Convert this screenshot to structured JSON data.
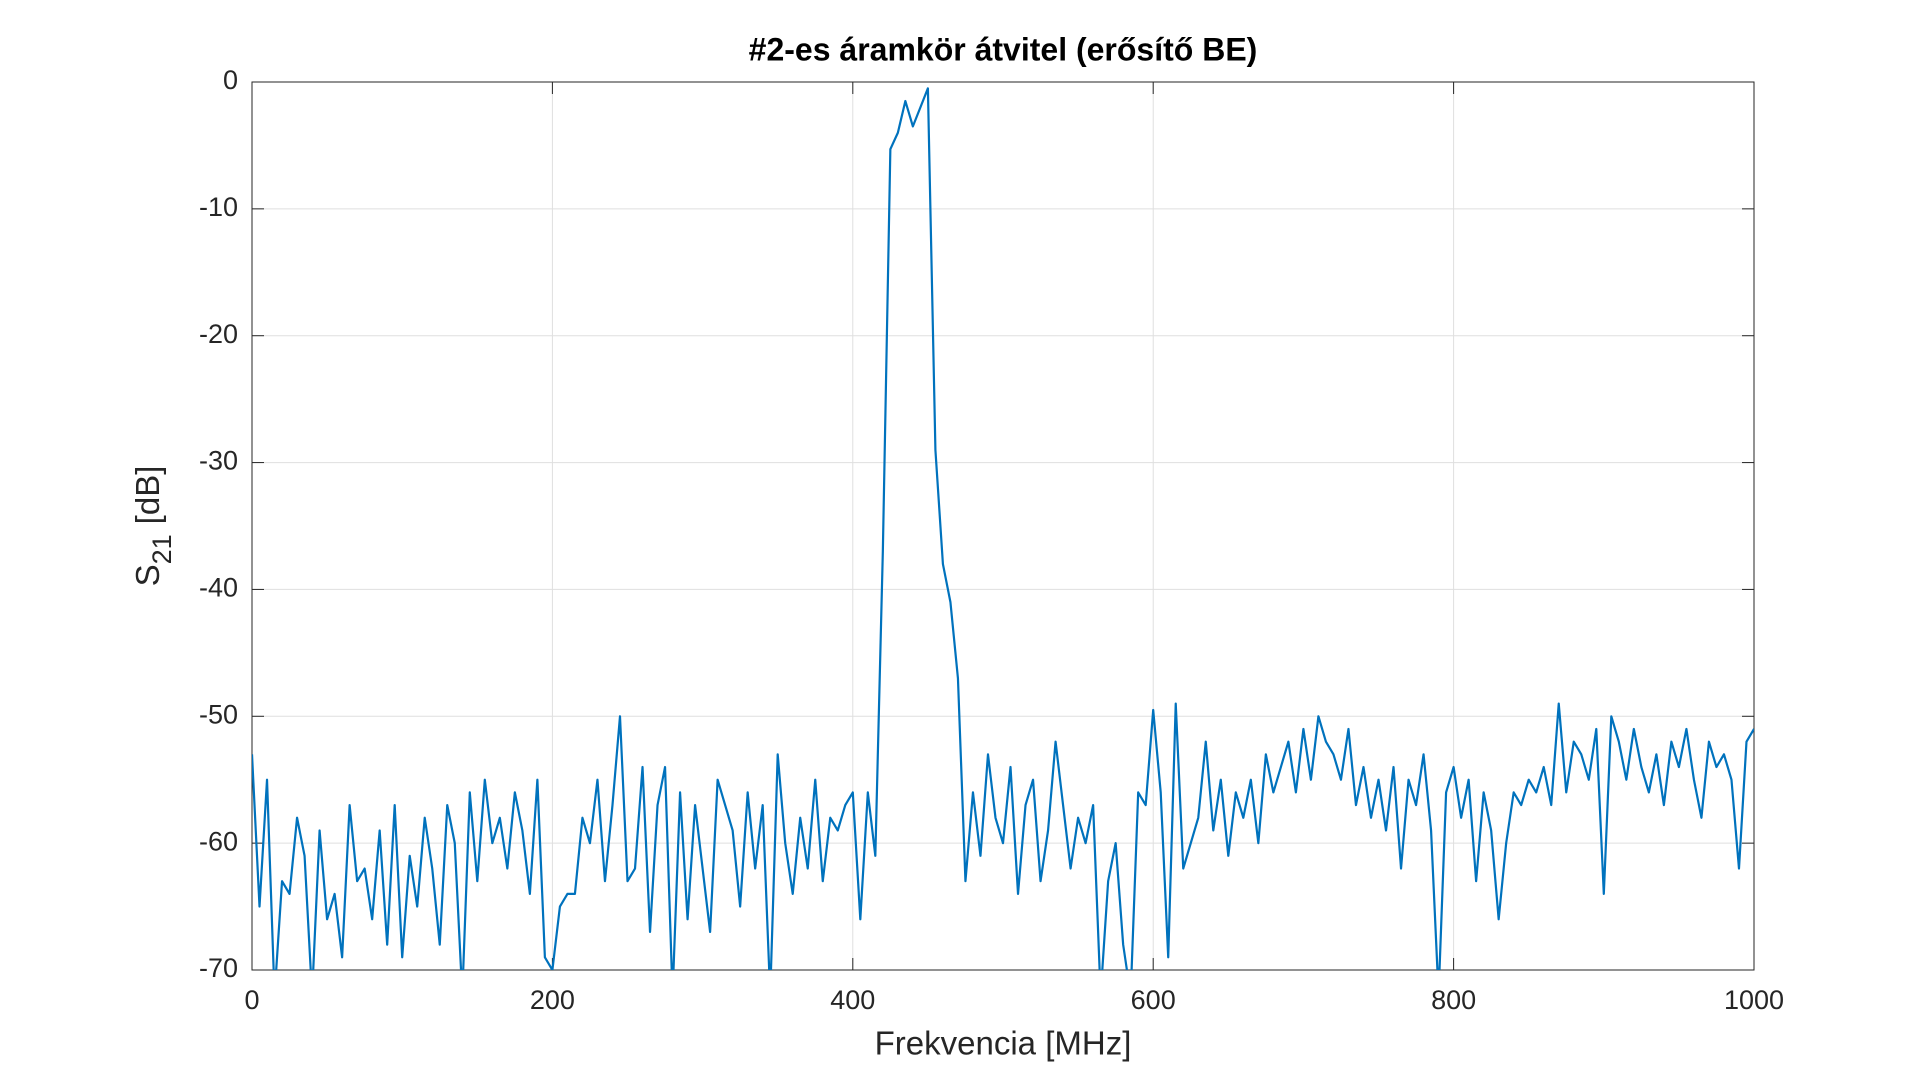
{
  "chart_data": {
    "type": "line",
    "title": "#2-es áramkör átvitel (erősítő BE)",
    "xlabel": "Frekvencia [MHz]",
    "ylabel": {
      "main": "S",
      "sub": "21",
      "unit": "[dB]"
    },
    "xlim": [
      0,
      1000
    ],
    "xticks": [
      0,
      200,
      400,
      600,
      800,
      1000
    ],
    "ylim": [
      -70,
      0
    ],
    "yticks": [
      -70,
      -60,
      -50,
      -40,
      -30,
      -20,
      -10,
      0
    ],
    "grid": true,
    "x": [
      0,
      5,
      10,
      15,
      20,
      25,
      30,
      35,
      40,
      45,
      50,
      55,
      60,
      65,
      70,
      75,
      80,
      85,
      90,
      95,
      100,
      105,
      110,
      115,
      120,
      125,
      130,
      135,
      140,
      145,
      150,
      155,
      160,
      165,
      170,
      175,
      180,
      185,
      190,
      195,
      200,
      205,
      210,
      215,
      220,
      225,
      230,
      235,
      240,
      245,
      250,
      255,
      260,
      265,
      270,
      275,
      280,
      285,
      290,
      295,
      300,
      305,
      310,
      315,
      320,
      325,
      330,
      335,
      340,
      345,
      350,
      355,
      360,
      365,
      370,
      375,
      380,
      385,
      390,
      395,
      400,
      405,
      410,
      415,
      420,
      425,
      430,
      435,
      440,
      445,
      450,
      455,
      460,
      465,
      470,
      475,
      480,
      485,
      490,
      495,
      500,
      505,
      510,
      515,
      520,
      525,
      530,
      535,
      540,
      545,
      550,
      555,
      560,
      565,
      570,
      575,
      580,
      585,
      590,
      595,
      600,
      605,
      610,
      615,
      620,
      625,
      630,
      635,
      640,
      645,
      650,
      655,
      660,
      665,
      670,
      675,
      680,
      685,
      690,
      695,
      700,
      705,
      710,
      715,
      720,
      725,
      730,
      735,
      740,
      745,
      750,
      755,
      760,
      765,
      770,
      775,
      780,
      785,
      790,
      795,
      800,
      805,
      810,
      815,
      820,
      825,
      830,
      835,
      840,
      845,
      850,
      855,
      860,
      865,
      870,
      875,
      880,
      885,
      890,
      895,
      900,
      905,
      910,
      915,
      920,
      925,
      930,
      935,
      940,
      945,
      950,
      955,
      960,
      965,
      970,
      975,
      980,
      985,
      990,
      995,
      1000
    ],
    "series": [
      {
        "name": "S21",
        "color": "#0072bd",
        "values": [
          -53,
          -65,
          -55,
          -72,
          -63,
          -64,
          -58,
          -61,
          -72,
          -59,
          -66,
          -64,
          -69,
          -57,
          -63,
          -62,
          -66,
          -59,
          -68,
          -57,
          -69,
          -61,
          -65,
          -58,
          -62,
          -68,
          -57,
          -60,
          -72,
          -56,
          -63,
          -55,
          -60,
          -58,
          -62,
          -56,
          -59,
          -64,
          -55,
          -69,
          -70,
          -65,
          -64,
          -64,
          -58,
          -60,
          -55,
          -63,
          -57,
          -50,
          -63,
          -62,
          -54,
          -67,
          -57,
          -54,
          -72,
          -56,
          -66,
          -57,
          -62,
          -67,
          -55,
          -57,
          -59,
          -65,
          -56,
          -62,
          -57,
          -72,
          -53,
          -60,
          -64,
          -58,
          -62,
          -55,
          -63,
          -58,
          -59,
          -57,
          -56,
          -66,
          -56,
          -61,
          -37,
          -5.3,
          -4,
          -1.5,
          -3.5,
          -2,
          -0.5,
          -29,
          -38,
          -41,
          -47,
          -63,
          -56,
          -61,
          -53,
          -58,
          -60,
          -54,
          -64,
          -57,
          -55,
          -63,
          -59,
          -52,
          -57,
          -62,
          -58,
          -60,
          -57,
          -72,
          -63,
          -60,
          -68,
          -72,
          -56,
          -57,
          -49.5,
          -56,
          -69,
          -49,
          -62,
          -60,
          -58,
          -52,
          -59,
          -55,
          -61,
          -56,
          -58,
          -55,
          -60,
          -53,
          -56,
          -54,
          -52,
          -56,
          -51,
          -55,
          -50,
          -52,
          -53,
          -55,
          -51,
          -57,
          -54,
          -58,
          -55,
          -59,
          -54,
          -62,
          -55,
          -57,
          -53,
          -59,
          -72,
          -56,
          -54,
          -58,
          -55,
          -63,
          -56,
          -59,
          -66,
          -60,
          -56,
          -57,
          -55,
          -56,
          -54,
          -57,
          -49,
          -56,
          -52,
          -53,
          -55,
          -51,
          -64,
          -50,
          -52,
          -55,
          -51,
          -54,
          -56,
          -53,
          -57,
          -52,
          -54,
          -51,
          -55,
          -58,
          -52,
          -54,
          -53,
          -55,
          -62,
          -52,
          -51
        ]
      }
    ]
  }
}
